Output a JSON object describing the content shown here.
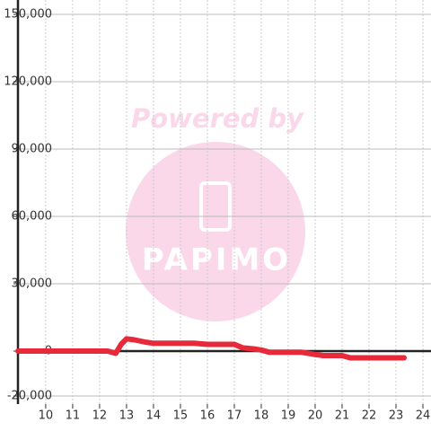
{
  "chart_data": {
    "type": "line",
    "x": [
      8.97,
      12.3,
      12.6,
      12.8,
      13,
      13.3,
      13.7,
      14,
      15,
      15.5,
      16,
      17,
      17.3,
      17.7,
      18,
      18.3,
      19,
      19.5,
      20,
      20.3,
      21,
      21.3,
      22,
      23.3
    ],
    "series": [
      {
        "name": null,
        "color": "#e8293a",
        "values": [
          0,
          0,
          -1000,
          3000,
          5500,
          5000,
          4000,
          3500,
          3500,
          3500,
          3000,
          3000,
          1500,
          1000,
          500,
          -500,
          -500,
          -500,
          -1500,
          -2000,
          -2000,
          -3000,
          -3000,
          -3000
        ]
      }
    ],
    "xlim": [
      8.97,
      24.3
    ],
    "xticks": [
      10,
      11,
      12,
      13,
      14,
      15,
      16,
      17,
      18,
      19,
      20,
      21,
      22,
      23,
      24
    ],
    "ylim": [
      -20000,
      150000
    ],
    "yticks": [
      {
        "value": -20000,
        "label": "-20,000"
      },
      0,
      {
        "value": 30000,
        "label": "30,000"
      },
      {
        "value": 60000,
        "label": "60,000"
      },
      {
        "value": 90000,
        "label": "90,000"
      },
      {
        "value": 120000,
        "label": "120,000"
      },
      {
        "value": 150000,
        "label": "150,000"
      }
    ],
    "grid": true,
    "annotations": [
      "Powered by",
      "PAPIMO"
    ]
  }
}
